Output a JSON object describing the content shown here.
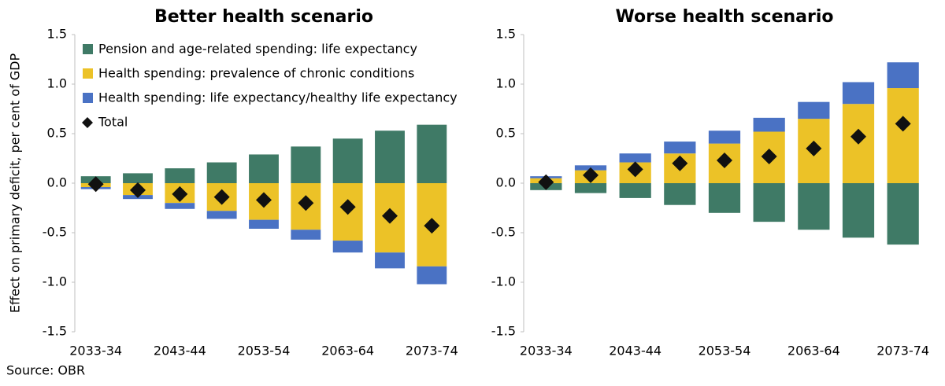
{
  "source": "Source: OBR",
  "chart_data": [
    {
      "type": "bar",
      "stacked": true,
      "title": "Better health scenario",
      "y_label": "Effect on primary deficit, per cent of GDP",
      "categories": [
        "2033-34",
        null,
        "2043-44",
        null,
        "2053-54",
        null,
        "2063-64",
        null,
        "2073-74"
      ],
      "series": [
        {
          "name": "Pension and age-related spending: life expectancy",
          "color": "#3f7a66",
          "values": [
            0.07,
            0.1,
            0.15,
            0.21,
            0.29,
            0.37,
            0.45,
            0.53,
            0.59
          ]
        },
        {
          "name": "Health spending: prevalence of chronic conditions",
          "color": "#ecc227",
          "values": [
            -0.04,
            -0.12,
            -0.2,
            -0.28,
            -0.37,
            -0.47,
            -0.58,
            -0.7,
            -0.84
          ]
        },
        {
          "name": "Health spending: life expectancy/healthy life expectancy",
          "color": "#4a72c4",
          "values": [
            -0.02,
            -0.04,
            -0.06,
            -0.08,
            -0.09,
            -0.1,
            -0.12,
            -0.16,
            -0.18
          ]
        }
      ],
      "total": {
        "name": "Total",
        "color": "#111111",
        "values": [
          -0.01,
          -0.07,
          -0.11,
          -0.14,
          -0.17,
          -0.2,
          -0.24,
          -0.33,
          -0.43
        ]
      },
      "ylim": [
        -1.5,
        1.5
      ],
      "yticks": [
        1.5,
        {
          "value": 1.0,
          "label": "1.0"
        },
        0.5,
        {
          "value": 0.0,
          "label": "0.0"
        },
        -0.5,
        {
          "value": -1.0,
          "label": "-1.0"
        },
        -1.5
      ],
      "legend": "upper left"
    },
    {
      "type": "bar",
      "stacked": true,
      "title": "Worse health scenario",
      "categories": [
        "2033-34",
        null,
        "2043-44",
        null,
        "2053-54",
        null,
        "2063-64",
        null,
        "2073-74"
      ],
      "series": [
        {
          "color": "#3f7a66",
          "values": [
            -0.07,
            -0.1,
            -0.15,
            -0.22,
            -0.3,
            -0.39,
            -0.47,
            -0.55,
            -0.62
          ]
        },
        {
          "color": "#ecc227",
          "values": [
            0.05,
            0.13,
            0.21,
            0.3,
            0.4,
            0.52,
            0.65,
            0.8,
            0.96
          ]
        },
        {
          "color": "#4a72c4",
          "values": [
            0.02,
            0.05,
            0.09,
            0.12,
            0.13,
            0.14,
            0.17,
            0.22,
            0.26
          ]
        }
      ],
      "total": {
        "color": "#111111",
        "values": [
          0.01,
          0.08,
          0.14,
          0.2,
          0.23,
          0.27,
          0.35,
          0.47,
          0.6
        ]
      },
      "ylim": [
        -1.5,
        1.5
      ],
      "yticks": [
        1.5,
        {
          "value": 1.0,
          "label": "1.0"
        },
        0.5,
        {
          "value": 0.0,
          "label": "0.0"
        },
        -0.5,
        {
          "value": -1.0,
          "label": "-1.0"
        },
        -1.5
      ],
      "legend": "none"
    }
  ]
}
